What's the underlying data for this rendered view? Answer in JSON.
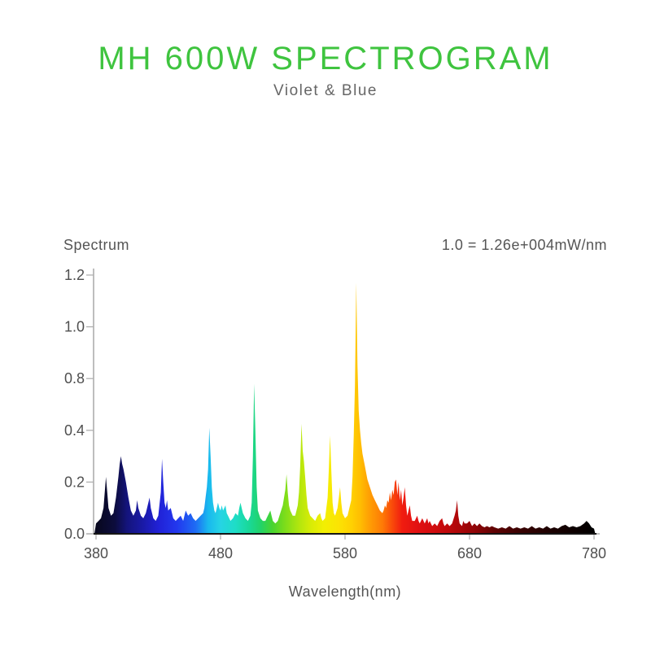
{
  "title": "MH 600W SPECTROGRAM",
  "subtitle": "Violet & Blue",
  "colors": {
    "title_green": "#3fc43f",
    "subtitle_gray": "#666666",
    "label_gray": "#555555",
    "tick_text": "#4f4f4f",
    "y_axis_line": "#9a9a9a",
    "baseline": "#161616",
    "tick_mark": "#b0b0b0"
  },
  "chart": {
    "label_left": "Spectrum",
    "label_right": "1.0 = 1.26e+004mW/nm",
    "xlabel": "Wavelength(nm)",
    "y_ticks": [
      "0.0",
      "0.2",
      "0.4",
      "0.8",
      "1.0",
      "1.2"
    ],
    "x_ticks": [
      "380",
      "480",
      "580",
      "680",
      "780"
    ]
  },
  "chart_data": {
    "type": "area",
    "title": "MH 600W SPECTROGRAM",
    "subtitle": "Violet & Blue",
    "xlabel": "Wavelength(nm)",
    "ylabel": "Spectrum",
    "scale_annotation": "1.0 = 1.26e+004mW/nm",
    "x_range": [
      380,
      780
    ],
    "x_ticks": [
      380,
      480,
      580,
      680,
      780
    ],
    "y_tick_labels": [
      "0.0",
      "0.2",
      "0.4",
      "0.8",
      "1.0",
      "1.2"
    ],
    "grid": false,
    "legend": false,
    "main_peaks": [
      {
        "nm": 400,
        "value": 0.3
      },
      {
        "nm": 433,
        "value": 0.29
      },
      {
        "nm": 471,
        "value": 0.42
      },
      {
        "nm": 507,
        "value": 0.76
      },
      {
        "nm": 533,
        "value": 0.23
      },
      {
        "nm": 545,
        "value": 0.45
      },
      {
        "nm": 568,
        "value": 0.38
      },
      {
        "nm": 589,
        "value": 1.17
      },
      {
        "nm": 621,
        "value": 0.21
      },
      {
        "nm": 670,
        "value": 0.13
      }
    ],
    "points": [
      [
        380,
        0.04
      ],
      [
        382,
        0.05
      ],
      [
        384,
        0.06
      ],
      [
        386,
        0.1
      ],
      [
        388,
        0.22
      ],
      [
        389,
        0.16
      ],
      [
        390,
        0.1
      ],
      [
        392,
        0.07
      ],
      [
        394,
        0.08
      ],
      [
        396,
        0.14
      ],
      [
        397,
        0.18
      ],
      [
        398,
        0.22
      ],
      [
        399,
        0.27
      ],
      [
        400,
        0.3
      ],
      [
        401,
        0.27
      ],
      [
        402,
        0.25
      ],
      [
        404,
        0.2
      ],
      [
        406,
        0.14
      ],
      [
        408,
        0.09
      ],
      [
        410,
        0.07
      ],
      [
        412,
        0.09
      ],
      [
        413,
        0.13
      ],
      [
        414,
        0.1
      ],
      [
        416,
        0.07
      ],
      [
        418,
        0.06
      ],
      [
        420,
        0.08
      ],
      [
        422,
        0.12
      ],
      [
        423,
        0.14
      ],
      [
        424,
        0.1
      ],
      [
        426,
        0.06
      ],
      [
        428,
        0.05
      ],
      [
        430,
        0.07
      ],
      [
        432,
        0.16
      ],
      [
        433,
        0.29
      ],
      [
        434,
        0.2
      ],
      [
        435,
        0.12
      ],
      [
        436,
        0.1
      ],
      [
        437,
        0.13
      ],
      [
        438,
        0.09
      ],
      [
        440,
        0.1
      ],
      [
        442,
        0.06
      ],
      [
        444,
        0.05
      ],
      [
        446,
        0.06
      ],
      [
        448,
        0.07
      ],
      [
        450,
        0.05
      ],
      [
        452,
        0.09
      ],
      [
        454,
        0.07
      ],
      [
        456,
        0.08
      ],
      [
        458,
        0.06
      ],
      [
        460,
        0.05
      ],
      [
        462,
        0.06
      ],
      [
        464,
        0.07
      ],
      [
        466,
        0.08
      ],
      [
        467,
        0.1
      ],
      [
        468,
        0.14
      ],
      [
        469,
        0.18
      ],
      [
        470,
        0.25
      ],
      [
        471,
        0.42
      ],
      [
        472,
        0.3
      ],
      [
        473,
        0.18
      ],
      [
        474,
        0.12
      ],
      [
        475,
        0.09
      ],
      [
        476,
        0.08
      ],
      [
        478,
        0.12
      ],
      [
        479,
        0.1
      ],
      [
        480,
        0.09
      ],
      [
        481,
        0.11
      ],
      [
        482,
        0.09
      ],
      [
        484,
        0.11
      ],
      [
        485,
        0.08
      ],
      [
        486,
        0.07
      ],
      [
        488,
        0.05
      ],
      [
        490,
        0.06
      ],
      [
        492,
        0.08
      ],
      [
        494,
        0.07
      ],
      [
        495,
        0.1
      ],
      [
        496,
        0.12
      ],
      [
        497,
        0.1
      ],
      [
        498,
        0.08
      ],
      [
        500,
        0.06
      ],
      [
        502,
        0.05
      ],
      [
        504,
        0.07
      ],
      [
        505,
        0.12
      ],
      [
        506,
        0.3
      ],
      [
        507,
        0.76
      ],
      [
        508,
        0.4
      ],
      [
        509,
        0.18
      ],
      [
        510,
        0.09
      ],
      [
        512,
        0.06
      ],
      [
        514,
        0.05
      ],
      [
        516,
        0.05
      ],
      [
        518,
        0.07
      ],
      [
        520,
        0.09
      ],
      [
        521,
        0.07
      ],
      [
        522,
        0.05
      ],
      [
        524,
        0.04
      ],
      [
        526,
        0.05
      ],
      [
        528,
        0.08
      ],
      [
        530,
        0.11
      ],
      [
        532,
        0.17
      ],
      [
        533,
        0.23
      ],
      [
        534,
        0.16
      ],
      [
        535,
        0.11
      ],
      [
        536,
        0.09
      ],
      [
        538,
        0.07
      ],
      [
        540,
        0.07
      ],
      [
        542,
        0.11
      ],
      [
        543,
        0.16
      ],
      [
        544,
        0.26
      ],
      [
        545,
        0.45
      ],
      [
        546,
        0.32
      ],
      [
        547,
        0.28
      ],
      [
        548,
        0.22
      ],
      [
        549,
        0.15
      ],
      [
        550,
        0.1
      ],
      [
        552,
        0.07
      ],
      [
        554,
        0.06
      ],
      [
        556,
        0.05
      ],
      [
        558,
        0.07
      ],
      [
        560,
        0.08
      ],
      [
        561,
        0.06
      ],
      [
        562,
        0.05
      ],
      [
        564,
        0.06
      ],
      [
        566,
        0.14
      ],
      [
        567,
        0.25
      ],
      [
        568,
        0.38
      ],
      [
        569,
        0.24
      ],
      [
        570,
        0.12
      ],
      [
        571,
        0.08
      ],
      [
        572,
        0.07
      ],
      [
        574,
        0.1
      ],
      [
        575,
        0.14
      ],
      [
        576,
        0.18
      ],
      [
        577,
        0.12
      ],
      [
        578,
        0.08
      ],
      [
        580,
        0.06
      ],
      [
        582,
        0.07
      ],
      [
        583,
        0.09
      ],
      [
        585,
        0.13
      ],
      [
        586,
        0.22
      ],
      [
        587,
        0.38
      ],
      [
        588,
        0.75
      ],
      [
        589,
        1.17
      ],
      [
        590,
        0.85
      ],
      [
        591,
        0.55
      ],
      [
        592,
        0.4
      ],
      [
        593,
        0.35
      ],
      [
        594,
        0.31
      ],
      [
        596,
        0.26
      ],
      [
        598,
        0.21
      ],
      [
        600,
        0.18
      ],
      [
        602,
        0.15
      ],
      [
        604,
        0.13
      ],
      [
        606,
        0.11
      ],
      [
        608,
        0.09
      ],
      [
        610,
        0.08
      ],
      [
        611,
        0.09
      ],
      [
        612,
        0.11
      ],
      [
        613,
        0.1
      ],
      [
        614,
        0.13
      ],
      [
        615,
        0.12
      ],
      [
        616,
        0.16
      ],
      [
        617,
        0.13
      ],
      [
        618,
        0.17
      ],
      [
        619,
        0.15
      ],
      [
        620,
        0.2
      ],
      [
        621,
        0.21
      ],
      [
        622,
        0.15
      ],
      [
        623,
        0.2
      ],
      [
        624,
        0.13
      ],
      [
        625,
        0.17
      ],
      [
        626,
        0.11
      ],
      [
        627,
        0.14
      ],
      [
        628,
        0.18
      ],
      [
        629,
        0.11
      ],
      [
        630,
        0.07
      ],
      [
        631,
        0.09
      ],
      [
        632,
        0.11
      ],
      [
        633,
        0.07
      ],
      [
        634,
        0.05
      ],
      [
        636,
        0.05
      ],
      [
        638,
        0.07
      ],
      [
        639,
        0.05
      ],
      [
        640,
        0.04
      ],
      [
        642,
        0.06
      ],
      [
        644,
        0.04
      ],
      [
        646,
        0.06
      ],
      [
        647,
        0.04
      ],
      [
        648,
        0.05
      ],
      [
        650,
        0.03
      ],
      [
        652,
        0.04
      ],
      [
        654,
        0.03
      ],
      [
        656,
        0.05
      ],
      [
        658,
        0.06
      ],
      [
        659,
        0.04
      ],
      [
        660,
        0.03
      ],
      [
        662,
        0.04
      ],
      [
        664,
        0.03
      ],
      [
        666,
        0.04
      ],
      [
        668,
        0.07
      ],
      [
        669,
        0.09
      ],
      [
        670,
        0.13
      ],
      [
        671,
        0.07
      ],
      [
        672,
        0.04
      ],
      [
        674,
        0.03
      ],
      [
        675,
        0.05
      ],
      [
        676,
        0.04
      ],
      [
        678,
        0.04
      ],
      [
        680,
        0.05
      ],
      [
        681,
        0.04
      ],
      [
        682,
        0.03
      ],
      [
        684,
        0.04
      ],
      [
        686,
        0.03
      ],
      [
        688,
        0.04
      ],
      [
        690,
        0.03
      ],
      [
        692,
        0.025
      ],
      [
        694,
        0.03
      ],
      [
        696,
        0.025
      ],
      [
        698,
        0.03
      ],
      [
        700,
        0.025
      ],
      [
        703,
        0.02
      ],
      [
        706,
        0.025
      ],
      [
        709,
        0.02
      ],
      [
        712,
        0.03
      ],
      [
        715,
        0.02
      ],
      [
        718,
        0.025
      ],
      [
        721,
        0.02
      ],
      [
        724,
        0.025
      ],
      [
        727,
        0.02
      ],
      [
        730,
        0.03
      ],
      [
        733,
        0.02
      ],
      [
        736,
        0.025
      ],
      [
        739,
        0.02
      ],
      [
        742,
        0.03
      ],
      [
        745,
        0.02
      ],
      [
        748,
        0.025
      ],
      [
        751,
        0.02
      ],
      [
        754,
        0.03
      ],
      [
        757,
        0.035
      ],
      [
        760,
        0.025
      ],
      [
        763,
        0.03
      ],
      [
        766,
        0.025
      ],
      [
        769,
        0.03
      ],
      [
        772,
        0.04
      ],
      [
        774,
        0.05
      ],
      [
        776,
        0.04
      ],
      [
        778,
        0.025
      ],
      [
        780,
        0.02
      ]
    ],
    "gradient_stops": [
      [
        380,
        "#08081e"
      ],
      [
        395,
        "#0c0c3c"
      ],
      [
        405,
        "#14147c"
      ],
      [
        418,
        "#1a1aa8"
      ],
      [
        430,
        "#2121d6"
      ],
      [
        445,
        "#2238ee"
      ],
      [
        460,
        "#1e6cf4"
      ],
      [
        470,
        "#19b8ee"
      ],
      [
        480,
        "#26d4e4"
      ],
      [
        492,
        "#1eddc6"
      ],
      [
        503,
        "#19d898"
      ],
      [
        512,
        "#21d36a"
      ],
      [
        522,
        "#4ad42e"
      ],
      [
        532,
        "#7edd1a"
      ],
      [
        543,
        "#b2e60e"
      ],
      [
        553,
        "#d9ec06"
      ],
      [
        563,
        "#f2ef02"
      ],
      [
        575,
        "#fce303"
      ],
      [
        585,
        "#ffd102"
      ],
      [
        592,
        "#ffbe02"
      ],
      [
        600,
        "#ff9d04"
      ],
      [
        610,
        "#fe7b06"
      ],
      [
        618,
        "#f94a0a"
      ],
      [
        626,
        "#f01c10"
      ],
      [
        638,
        "#e21112"
      ],
      [
        650,
        "#d30d0f"
      ],
      [
        662,
        "#c00a0c"
      ],
      [
        674,
        "#a80709"
      ],
      [
        686,
        "#8c0507"
      ],
      [
        700,
        "#600304"
      ],
      [
        720,
        "#3a0202"
      ],
      [
        745,
        "#1c0101"
      ],
      [
        780,
        "#000000"
      ]
    ]
  }
}
